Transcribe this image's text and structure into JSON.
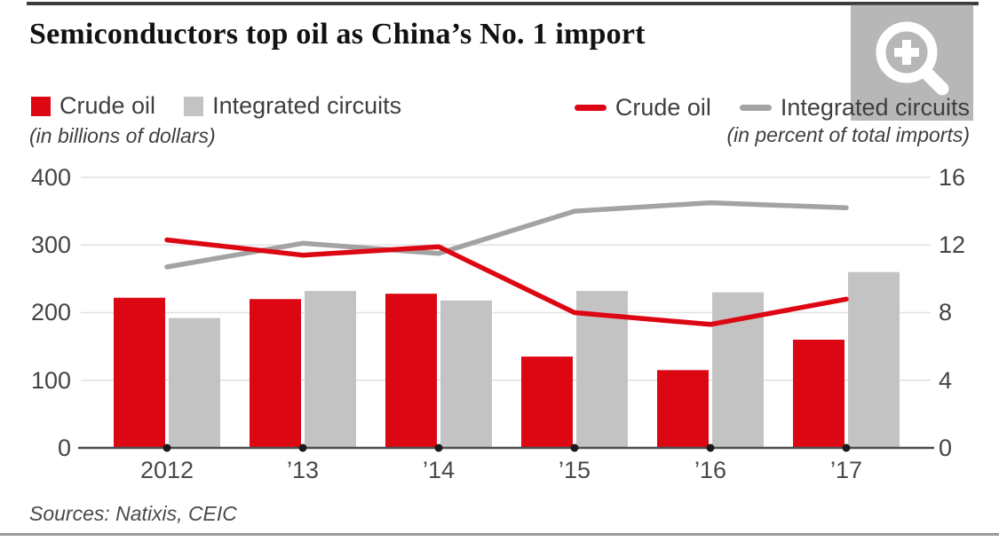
{
  "header": {
    "title": "Semiconductors top oil as China’s No. 1 import"
  },
  "legend_bars": {
    "crude_label": "Crude oil",
    "ic_label": "Integrated circuits",
    "unit_label": "(in billions of dollars)"
  },
  "legend_lines": {
    "crude_label": "Crude oil",
    "ic_label": "Integrated circuits",
    "unit_label": "(in percent of total imports)"
  },
  "footer": {
    "sources": "Sources: Natixis, CEIC"
  },
  "icons": {
    "zoom_icon": "magnifier-plus-icon"
  },
  "colors": {
    "red": "#dd0713",
    "gray_bar": "#c3c3c3",
    "gray_line": "#a3a3a3",
    "grid": "#e2e2e2",
    "axis": "#4d4d4d",
    "dot": "#1a1a1a"
  },
  "chart_data": {
    "type": "bar",
    "subtype": "grouped bars with overlaid lines (dual axis)",
    "title": "Semiconductors top oil as China’s No. 1 import",
    "categories": [
      "2012",
      "’13",
      "’14",
      "’15",
      "’16",
      "’17"
    ],
    "bar_series": [
      {
        "name": "Crude oil",
        "unit": "billions of dollars",
        "axis": "left",
        "color": "#dd0713",
        "values": [
          222,
          220,
          228,
          135,
          115,
          160
        ]
      },
      {
        "name": "Integrated circuits",
        "unit": "billions of dollars",
        "axis": "left",
        "color": "#c3c3c3",
        "values": [
          192,
          232,
          218,
          232,
          230,
          260
        ]
      }
    ],
    "line_series": [
      {
        "name": "Crude oil",
        "unit": "percent of total imports",
        "axis": "right",
        "color": "#dd0713",
        "values": [
          12.3,
          11.4,
          11.9,
          8.0,
          7.3,
          8.8
        ]
      },
      {
        "name": "Integrated circuits",
        "unit": "percent of total imports",
        "axis": "right",
        "color": "#a3a3a3",
        "values": [
          10.7,
          12.1,
          11.5,
          14.0,
          14.5,
          14.2
        ]
      }
    ],
    "left_axis": {
      "label": "(in billions of dollars)",
      "ticks": [
        400,
        300,
        200,
        100,
        0
      ],
      "range": [
        0,
        400
      ]
    },
    "right_axis": {
      "label": "(in percent of total imports)",
      "ticks": [
        16,
        12,
        8,
        4,
        0
      ],
      "range": [
        0,
        16
      ]
    },
    "grid": true,
    "legend_position": "top"
  }
}
